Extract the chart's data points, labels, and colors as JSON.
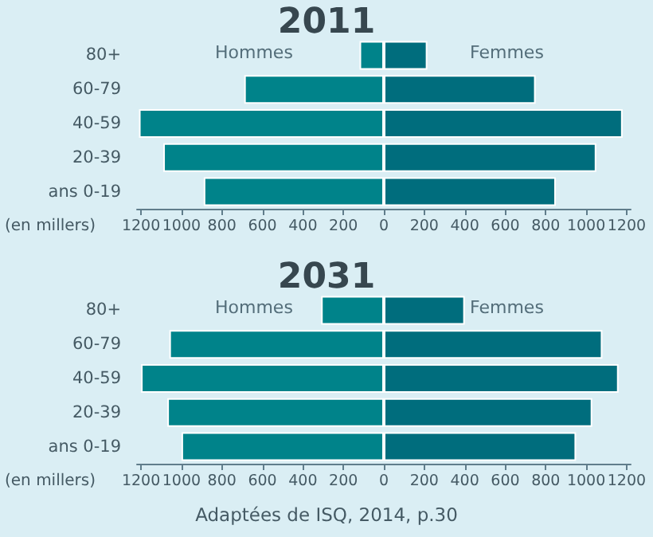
{
  "chart_data": [
    {
      "type": "bar",
      "orientation": "horizontal",
      "stacked": true,
      "title": "2011",
      "xlabel": "(en millers)",
      "categories": [
        "80+",
        "60-79",
        "40-59",
        "20-39",
        "ans 0-19"
      ],
      "series": [
        {
          "name": "Hommes",
          "color": "#00838a",
          "values": [
            -120,
            -690,
            -1210,
            -1090,
            -890
          ]
        },
        {
          "name": "Femmes",
          "color": "#006d7d",
          "values": [
            215,
            750,
            1180,
            1050,
            850
          ]
        }
      ],
      "xlim": [
        -1220,
        1220
      ],
      "xticks": [
        {
          "value": -1200,
          "label": "1200"
        },
        {
          "value": -1000,
          "label": "1000"
        },
        {
          "value": -800,
          "label": "800"
        },
        {
          "value": -600,
          "label": "600"
        },
        {
          "value": -400,
          "label": "400"
        },
        {
          "value": -200,
          "label": "200"
        },
        0,
        200,
        400,
        600,
        800,
        1000,
        1200
      ],
      "grid": false,
      "legend": false
    },
    {
      "type": "bar",
      "orientation": "horizontal",
      "stacked": true,
      "title": "2031",
      "xlabel": "(en millers)",
      "categories": [
        "80+",
        "60-79",
        "40-59",
        "20-39",
        "ans 0-19"
      ],
      "series": [
        {
          "name": "Hommes",
          "color": "#00838a",
          "values": [
            -310,
            -1060,
            -1200,
            -1070,
            -1000
          ]
        },
        {
          "name": "Femmes",
          "color": "#006d7d",
          "values": [
            400,
            1080,
            1160,
            1030,
            950
          ]
        }
      ],
      "xlim": [
        -1220,
        1220
      ],
      "xticks": [
        {
          "value": -1200,
          "label": "1200"
        },
        {
          "value": -1000,
          "label": "1000"
        },
        {
          "value": -800,
          "label": "800"
        },
        {
          "value": -600,
          "label": "600"
        },
        {
          "value": -400,
          "label": "400"
        },
        {
          "value": -200,
          "label": "200"
        },
        0,
        200,
        400,
        600,
        800,
        1000,
        1200
      ],
      "annotations": [
        "Adaptées de ISQ, 2014, p.30"
      ],
      "grid": false,
      "legend": false
    }
  ]
}
